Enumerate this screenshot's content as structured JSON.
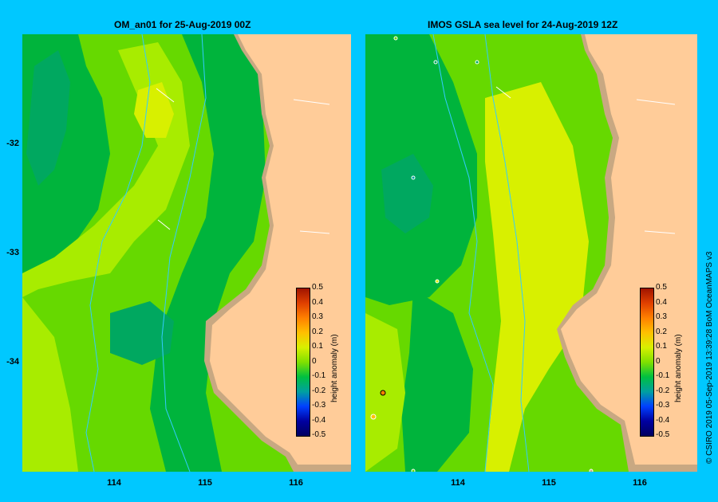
{
  "left_panel": {
    "title": "OM_an01 for 25-Aug-2019 00Z"
  },
  "right_panel": {
    "title": "IMOS GSLA sea level  for 24-Aug-2019 12Z"
  },
  "axes": {
    "lat_labels": [
      "-32",
      "-33",
      "-34"
    ],
    "lon_labels": [
      "114",
      "115",
      "116"
    ]
  },
  "colorbar": {
    "title": "height anomaly (m)",
    "ticks": [
      "0.5",
      "0.4",
      "0.3",
      "0.2",
      "0.1",
      "0",
      "-0.1",
      "-0.2",
      "-0.3",
      "-0.4",
      "-0.5"
    ],
    "colors": [
      "#a01400",
      "#e04000",
      "#ff8000",
      "#ffc000",
      "#d8f000",
      "#80e000",
      "#00c040",
      "#00a0a0",
      "#0040ff",
      "#0000a0",
      "#000060"
    ]
  },
  "credit": "© CSIRO 2019   05-Sep-2019 13:39:28 BoM OceanMAPS v3",
  "colors": {
    "background": "#00c8ff",
    "land": "#ffcc99",
    "coast": "#c8a882",
    "field_mid": "#66d900",
    "field_light": "#b8f000",
    "field_dark": "#00b43c",
    "field_teal": "#00a860"
  }
}
